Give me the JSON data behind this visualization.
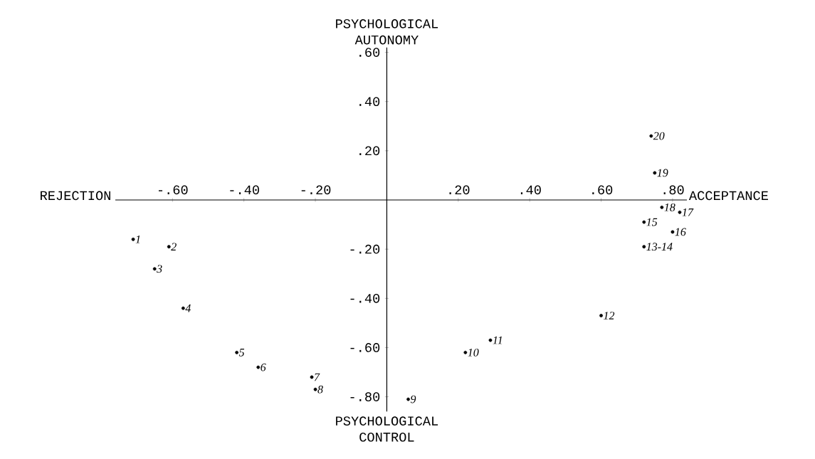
{
  "chart_data": {
    "type": "scatter",
    "xlabel": "ACCEPTANCE",
    "ylabel": "PSYCHOLOGICAL AUTONOMY",
    "xlim": [
      -0.76,
      0.84
    ],
    "ylim": [
      -0.86,
      0.62
    ],
    "xticks": [
      {
        "value": -0.6,
        "label": "-.60"
      },
      {
        "value": -0.4,
        "label": "-.40"
      },
      {
        "value": -0.2,
        "label": "-.20"
      },
      {
        "value": 0.2,
        "label": ".20"
      },
      {
        "value": 0.4,
        "label": ".40"
      },
      {
        "value": 0.6,
        "label": ".60"
      },
      {
        "value": 0.8,
        "label": ".80"
      }
    ],
    "yticks": [
      {
        "value": 0.6,
        "label": ".60"
      },
      {
        "value": 0.4,
        "label": ".40"
      },
      {
        "value": 0.2,
        "label": ".20"
      },
      {
        "value": -0.2,
        "label": "-.20"
      },
      {
        "value": -0.4,
        "label": "-.40"
      },
      {
        "value": -0.6,
        "label": "-.60"
      },
      {
        "value": -0.8,
        "label": "-.80"
      }
    ],
    "marker": "circle",
    "color": "#000000",
    "x": [
      -0.71,
      -0.61,
      -0.65,
      -0.57,
      -0.42,
      -0.36,
      -0.21,
      -0.2,
      0.06,
      0.22,
      0.29,
      0.6,
      0.72,
      0.72,
      0.8,
      0.82,
      0.77,
      0.75,
      0.74
    ],
    "values": [
      -0.16,
      -0.19,
      -0.28,
      -0.44,
      -0.62,
      -0.68,
      -0.72,
      -0.77,
      -0.81,
      -0.62,
      -0.57,
      -0.47,
      -0.19,
      -0.09,
      -0.13,
      -0.05,
      -0.03,
      0.11,
      0.26
    ],
    "annotations": [
      "REJECTION",
      "PSYCHOLOGICAL CONTROL",
      {
        "text": "1",
        "x": -0.71,
        "y": -0.16
      },
      {
        "text": "2",
        "x": -0.61,
        "y": -0.19
      },
      {
        "text": "3",
        "x": -0.65,
        "y": -0.28
      },
      {
        "text": "4",
        "x": -0.57,
        "y": -0.44
      },
      {
        "text": "5",
        "x": -0.42,
        "y": -0.62
      },
      {
        "text": "6",
        "x": -0.36,
        "y": -0.68
      },
      {
        "text": "7",
        "x": -0.21,
        "y": -0.72
      },
      {
        "text": "8",
        "x": -0.2,
        "y": -0.77
      },
      {
        "text": "9",
        "x": 0.06,
        "y": -0.81
      },
      {
        "text": "10",
        "x": 0.22,
        "y": -0.62
      },
      {
        "text": "11",
        "x": 0.29,
        "y": -0.57
      },
      {
        "text": "12",
        "x": 0.6,
        "y": -0.47
      },
      {
        "text": "13-14",
        "x": 0.72,
        "y": -0.19
      },
      {
        "text": "15",
        "x": 0.72,
        "y": -0.09
      },
      {
        "text": "16",
        "x": 0.8,
        "y": -0.13
      },
      {
        "text": "17",
        "x": 0.82,
        "y": -0.05
      },
      {
        "text": "18",
        "x": 0.77,
        "y": -0.03
      },
      {
        "text": "19",
        "x": 0.75,
        "y": 0.11
      },
      {
        "text": "20",
        "x": 0.74,
        "y": 0.26
      }
    ]
  }
}
